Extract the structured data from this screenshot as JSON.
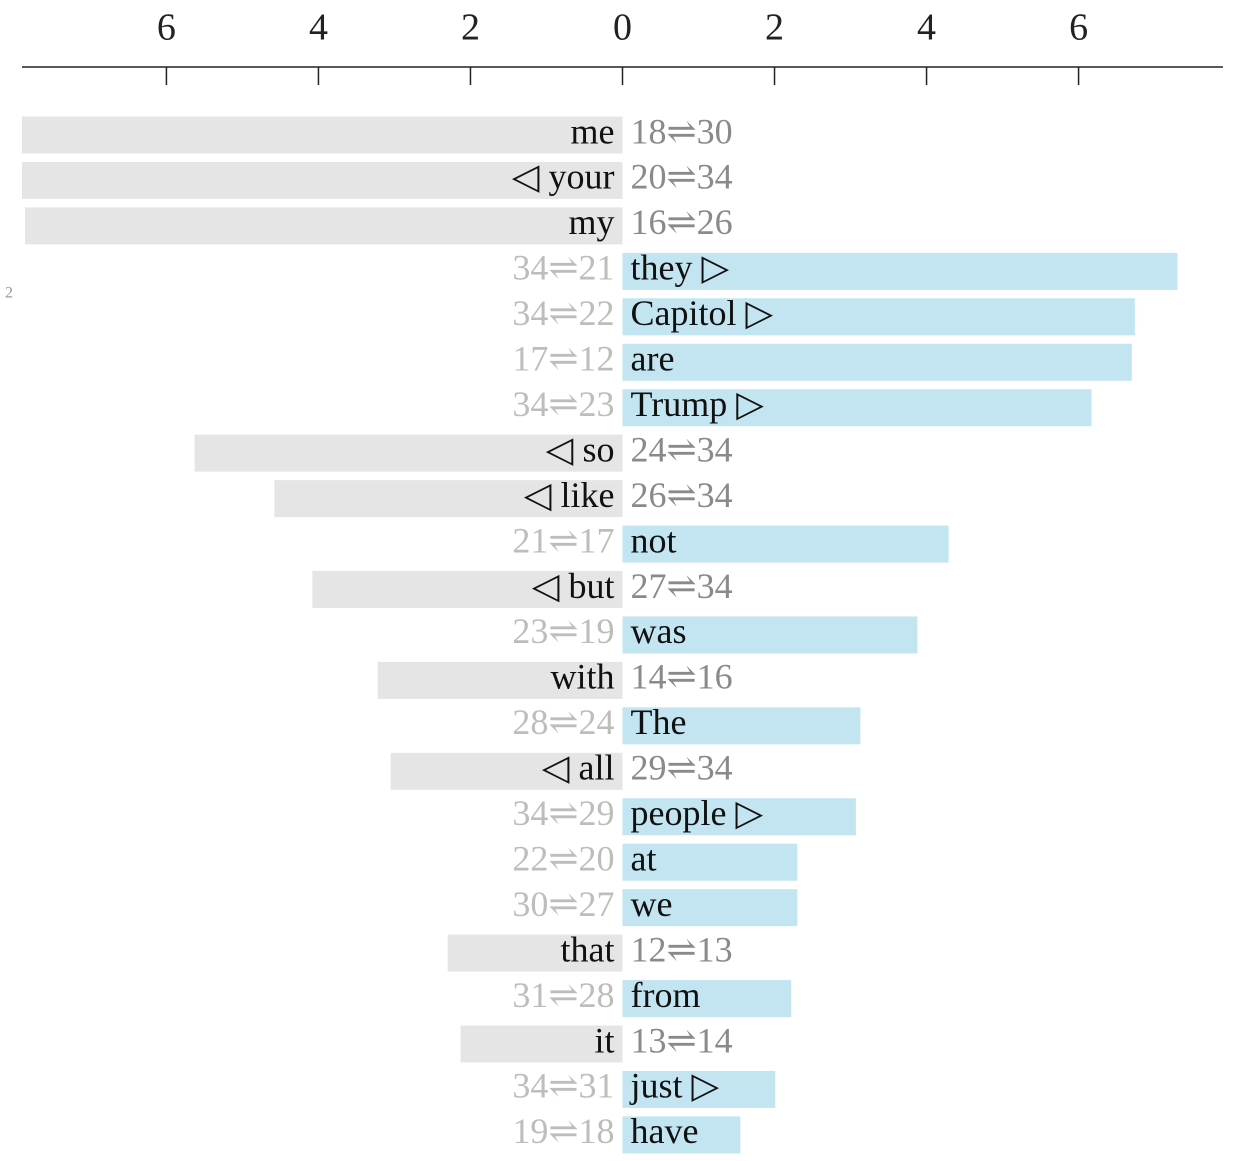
{
  "chart_data": {
    "type": "bar",
    "orientation": "horizontal",
    "annotation": "2",
    "categories": [
      "me",
      "◁ your",
      "my",
      "they ▷",
      "Capitol ▷",
      "are",
      "Trump ▷",
      "◁ so",
      "◁ like",
      "not",
      "◁ but",
      "was",
      "with",
      "The",
      "◁ all",
      "people ▷",
      "at",
      "we",
      "that",
      "from",
      "it",
      "just ▷",
      "have"
    ],
    "values": [
      -7.9,
      -7.9,
      -7.86,
      7.3,
      6.74,
      6.7,
      6.17,
      -5.63,
      -4.58,
      4.29,
      -4.08,
      3.88,
      -3.22,
      3.13,
      -3.05,
      3.07,
      2.3,
      2.3,
      -2.3,
      2.22,
      -2.13,
      2.01,
      1.55
    ],
    "pairs": [
      "18⇌30",
      "20⇌34",
      "16⇌26",
      "34⇌21",
      "34⇌22",
      "17⇌12",
      "34⇌23",
      "24⇌34",
      "26⇌34",
      "21⇌17",
      "27⇌34",
      "23⇌19",
      "14⇌16",
      "28⇌24",
      "29⇌34",
      "34⇌29",
      "22⇌20",
      "30⇌27",
      "12⇌13",
      "31⇌28",
      "13⇌14",
      "34⇌31",
      "19⇌18"
    ],
    "color_negative": "#e5e5e5",
    "color_positive": "#c2e5f1",
    "xlim": [
      -7.9,
      7.9
    ],
    "xticks": [
      {
        "value": -6,
        "label": "6"
      },
      {
        "value": -4,
        "label": "4"
      },
      {
        "value": -2,
        "label": "2"
      },
      0,
      2,
      4,
      6
    ]
  }
}
